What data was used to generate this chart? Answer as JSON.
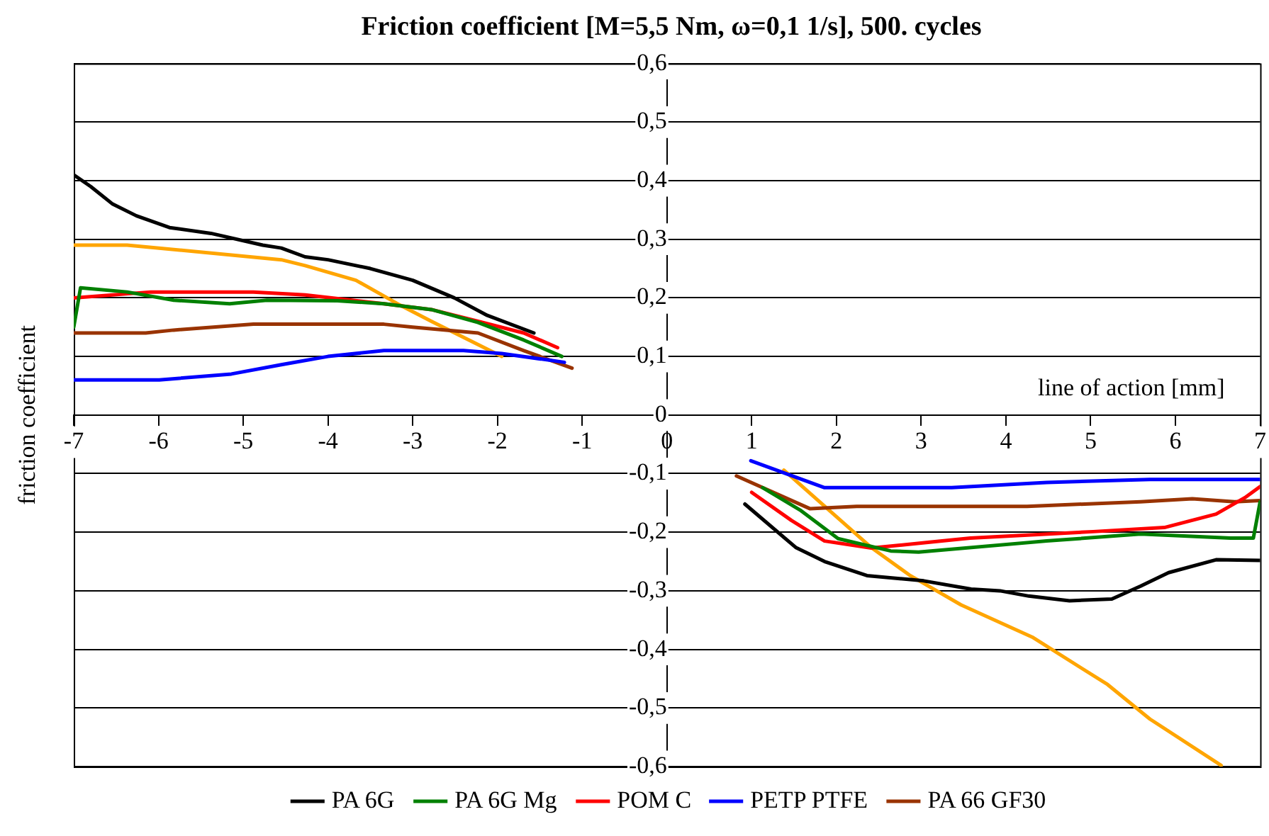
{
  "chart_data": {
    "type": "line",
    "title": "Friction coefficient [M=5,5 Nm, ω=0,1 1/s], 500. cycles",
    "xlabel": "line of action [mm]",
    "ylabel": "friction coefficient",
    "xlim": [
      -7,
      7
    ],
    "xticks": [
      -7,
      -6,
      -5,
      -4,
      -3,
      -2,
      -1,
      0,
      1,
      2,
      3,
      4,
      5,
      6,
      7
    ],
    "ylim": [
      -0.6,
      0.6
    ],
    "yticks": [
      {
        "value": -0.6,
        "label": "-0,6"
      },
      {
        "value": -0.5,
        "label": "-0,5"
      },
      {
        "value": -0.4,
        "label": "-0,4"
      },
      {
        "value": -0.3,
        "label": "-0,3"
      },
      {
        "value": -0.2,
        "label": "-0,2"
      },
      {
        "value": -0.1,
        "label": "-0,1"
      },
      {
        "value": 0,
        "label": "0"
      },
      {
        "value": 0.1,
        "label": "0,1"
      },
      {
        "value": 0.2,
        "label": "0,2"
      },
      {
        "value": 0.3,
        "label": "0,3"
      },
      {
        "value": 0.4,
        "label": "0,4"
      },
      {
        "value": 0.5,
        "label": "0,5"
      },
      {
        "value": 0.6,
        "label": "0,6"
      }
    ],
    "grid": "y",
    "legend": "bottom",
    "marker": "none",
    "line_style": "solid",
    "series": [
      {
        "name": "PA 6G",
        "color": "#000000",
        "x": [
          -7,
          -6.8,
          -6.54,
          -6.26,
          -5.87,
          -5.38,
          -4.77,
          -4.55,
          -4.27,
          -4.0,
          -3.5,
          -3.0,
          -2.51,
          -2.12,
          -1.57,
          0,
          0.92,
          1.52,
          1.86,
          2.36,
          3.03,
          3.59,
          3.93,
          4.27,
          4.75,
          5.25,
          5.59,
          5.92,
          6.48,
          7.0
        ],
        "values": [
          0.41,
          0.39,
          0.36,
          0.34,
          0.32,
          0.31,
          0.29,
          0.285,
          0.27,
          0.265,
          0.25,
          0.23,
          0.2,
          0.17,
          0.14,
          null,
          -0.152,
          -0.226,
          -0.25,
          -0.274,
          -0.283,
          -0.297,
          -0.3,
          -0.309,
          -0.317,
          -0.314,
          -0.292,
          -0.269,
          -0.247,
          -0.248
        ]
      },
      {
        "name": "PA 6G Mg",
        "color": "#008000",
        "x": [
          -7,
          -6.92,
          -6.37,
          -5.82,
          -5.16,
          -4.72,
          -3.89,
          -3.34,
          -2.78,
          -2.23,
          -1.69,
          -1.24,
          0,
          1.13,
          1.57,
          2.02,
          2.64,
          2.97,
          4.48,
          5.59,
          6.65,
          6.92,
          7.0
        ],
        "values": [
          0.15,
          0.217,
          0.21,
          0.196,
          0.19,
          0.196,
          0.195,
          0.19,
          0.18,
          0.158,
          0.128,
          0.1,
          null,
          -0.124,
          -0.162,
          -0.211,
          -0.232,
          -0.234,
          -0.215,
          -0.203,
          -0.21,
          -0.21,
          -0.148
        ]
      },
      {
        "name": "POM C",
        "color": "#ff0000",
        "x": [
          -7,
          -6.09,
          -4.88,
          -4.27,
          -3.34,
          -2.78,
          -2.23,
          -1.69,
          -1.29,
          0,
          1.0,
          1.47,
          1.86,
          2.41,
          3.58,
          5.03,
          5.87,
          6.48,
          6.82,
          7.0
        ],
        "values": [
          0.2,
          0.21,
          0.21,
          0.205,
          0.19,
          0.18,
          0.16,
          0.14,
          0.115,
          null,
          -0.132,
          -0.18,
          -0.215,
          -0.227,
          -0.21,
          -0.199,
          -0.192,
          -0.169,
          -0.141,
          -0.122
        ]
      },
      {
        "name": "PETP PTFE",
        "color": "#0000ff",
        "x": [
          -7,
          -5.99,
          -5.14,
          -4.55,
          -4.0,
          -3.34,
          -2.4,
          -1.95,
          -1.21,
          0,
          0.99,
          1.86,
          3.36,
          4.48,
          5.7,
          7.0
        ],
        "values": [
          0.06,
          0.06,
          0.07,
          0.086,
          0.1,
          0.11,
          0.11,
          0.105,
          0.09,
          null,
          -0.078,
          -0.124,
          -0.124,
          -0.115,
          -0.11,
          -0.11
        ]
      },
      {
        "name": "PA 66 GF30",
        "color": "#993300",
        "x": [
          -7,
          -6.15,
          -5.82,
          -4.88,
          -3.34,
          -3.0,
          -2.23,
          -1.69,
          -1.12,
          0,
          0.82,
          1.69,
          2.24,
          4.25,
          5.59,
          6.2,
          6.7,
          7.0
        ],
        "values": [
          0.14,
          0.14,
          0.145,
          0.155,
          0.155,
          0.15,
          0.14,
          0.11,
          0.08,
          null,
          -0.104,
          -0.16,
          -0.156,
          -0.156,
          -0.148,
          -0.143,
          -0.148,
          -0.146
        ]
      },
      {
        "color": "#ffa500",
        "x": [
          -7,
          -6.37,
          -4.55,
          -4.27,
          -3.67,
          -3.18,
          -2.78,
          -1.95,
          0,
          1.38,
          2.41,
          2.86,
          3.47,
          4.31,
          5.2,
          5.7,
          6.54
        ],
        "values": [
          0.29,
          0.29,
          0.265,
          0.255,
          0.23,
          0.19,
          0.16,
          0.1,
          null,
          -0.094,
          -0.226,
          -0.273,
          -0.324,
          -0.379,
          -0.46,
          -0.519,
          -0.598
        ]
      }
    ]
  }
}
